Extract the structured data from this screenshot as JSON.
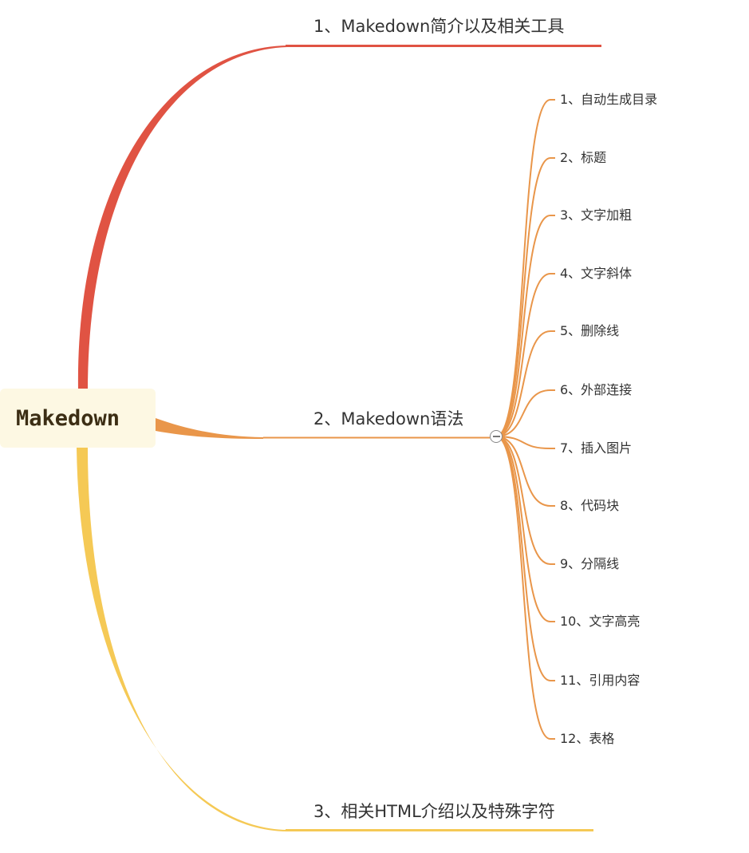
{
  "root": {
    "label": "Makedown"
  },
  "branches": [
    {
      "label": "1、Makedown简介以及相关工具",
      "color": "#e05343"
    },
    {
      "label": "2、Makedown语法",
      "color": "#e9964a",
      "children": [
        "1、自动生成目录",
        "2、标题",
        "3、文字加粗",
        "4、文字斜体",
        "5、删除线",
        "6、外部连接",
        "7、插入图片",
        "8、代码块",
        "9、分隔线",
        "10、文字高亮",
        "11、引用内容",
        "12、表格"
      ]
    },
    {
      "label": "3、相关HTML介绍以及特殊字符",
      "color": "#f5c955"
    }
  ]
}
